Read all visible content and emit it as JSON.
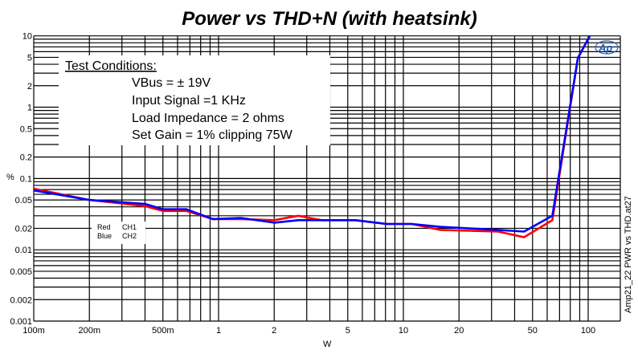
{
  "chart_data": {
    "type": "line",
    "title": "Power vs THD+N (with heatsink)",
    "xlabel": "W",
    "ylabel": "%",
    "xscale": "log",
    "yscale": "log",
    "xlim": [
      0.1,
      150
    ],
    "ylim": [
      0.001,
      10
    ],
    "grid": true,
    "x_ticks": [
      {
        "v": 0.1,
        "label": "100m"
      },
      {
        "v": 0.2,
        "label": "200m"
      },
      {
        "v": 0.5,
        "label": "500m"
      },
      {
        "v": 1,
        "label": "1"
      },
      {
        "v": 2,
        "label": "2"
      },
      {
        "v": 5,
        "label": "5"
      },
      {
        "v": 10,
        "label": "10"
      },
      {
        "v": 20,
        "label": "20"
      },
      {
        "v": 50,
        "label": "50"
      },
      {
        "v": 100,
        "label": "100"
      }
    ],
    "y_ticks": [
      {
        "v": 10,
        "label": "10"
      },
      {
        "v": 5,
        "label": "5"
      },
      {
        "v": 2,
        "label": "2"
      },
      {
        "v": 1,
        "label": "1"
      },
      {
        "v": 0.5,
        "label": "0.5"
      },
      {
        "v": 0.2,
        "label": "0.2"
      },
      {
        "v": 0.1,
        "label": "0.1"
      },
      {
        "v": 0.05,
        "label": "0.05"
      },
      {
        "v": 0.02,
        "label": "0.02"
      },
      {
        "v": 0.01,
        "label": "0.01"
      },
      {
        "v": 0.005,
        "label": "0.005"
      },
      {
        "v": 0.002,
        "label": "0.002"
      },
      {
        "v": 0.001,
        "label": "0.001"
      }
    ],
    "series": [
      {
        "name": "CH1",
        "color_name": "Red",
        "color": "#ff0000",
        "x": [
          0.1,
          0.2,
          0.4,
          0.5,
          0.67,
          0.93,
          1.32,
          2.0,
          2.7,
          3.6,
          5.5,
          8.1,
          11.1,
          15.8,
          32.6,
          45,
          64,
          88,
          102
        ],
        "y": [
          0.072,
          0.05,
          0.041,
          0.035,
          0.035,
          0.027,
          0.027,
          0.026,
          0.03,
          0.026,
          0.026,
          0.023,
          0.023,
          0.019,
          0.018,
          0.015,
          0.026,
          4.9,
          10
        ]
      },
      {
        "name": "CH2",
        "color_name": "Blue",
        "color": "#0000ff",
        "x": [
          0.1,
          0.2,
          0.4,
          0.5,
          0.67,
          0.93,
          1.32,
          2.0,
          2.7,
          3.6,
          5.5,
          8.1,
          11.1,
          15.8,
          32.6,
          45,
          64,
          88,
          102
        ],
        "y": [
          0.068,
          0.05,
          0.044,
          0.037,
          0.037,
          0.027,
          0.028,
          0.024,
          0.026,
          0.026,
          0.026,
          0.023,
          0.023,
          0.021,
          0.019,
          0.018,
          0.03,
          4.9,
          10
        ]
      }
    ],
    "legend": {
      "placement": "lower-left",
      "entries": [
        {
          "color": "Red",
          "label": "CH1"
        },
        {
          "color": "Blue",
          "label": "CH2"
        }
      ]
    },
    "annotation": {
      "heading": "Test Conditions:",
      "lines": [
        "VBus = ± 19V",
        "Input Signal =1 KHz",
        "Load Impedance = 2 ohms",
        "Set Gain = 1% clipping 75W"
      ]
    },
    "side_label": "Amp21_22 PWR vs THD.at27",
    "logo": "Ap"
  }
}
